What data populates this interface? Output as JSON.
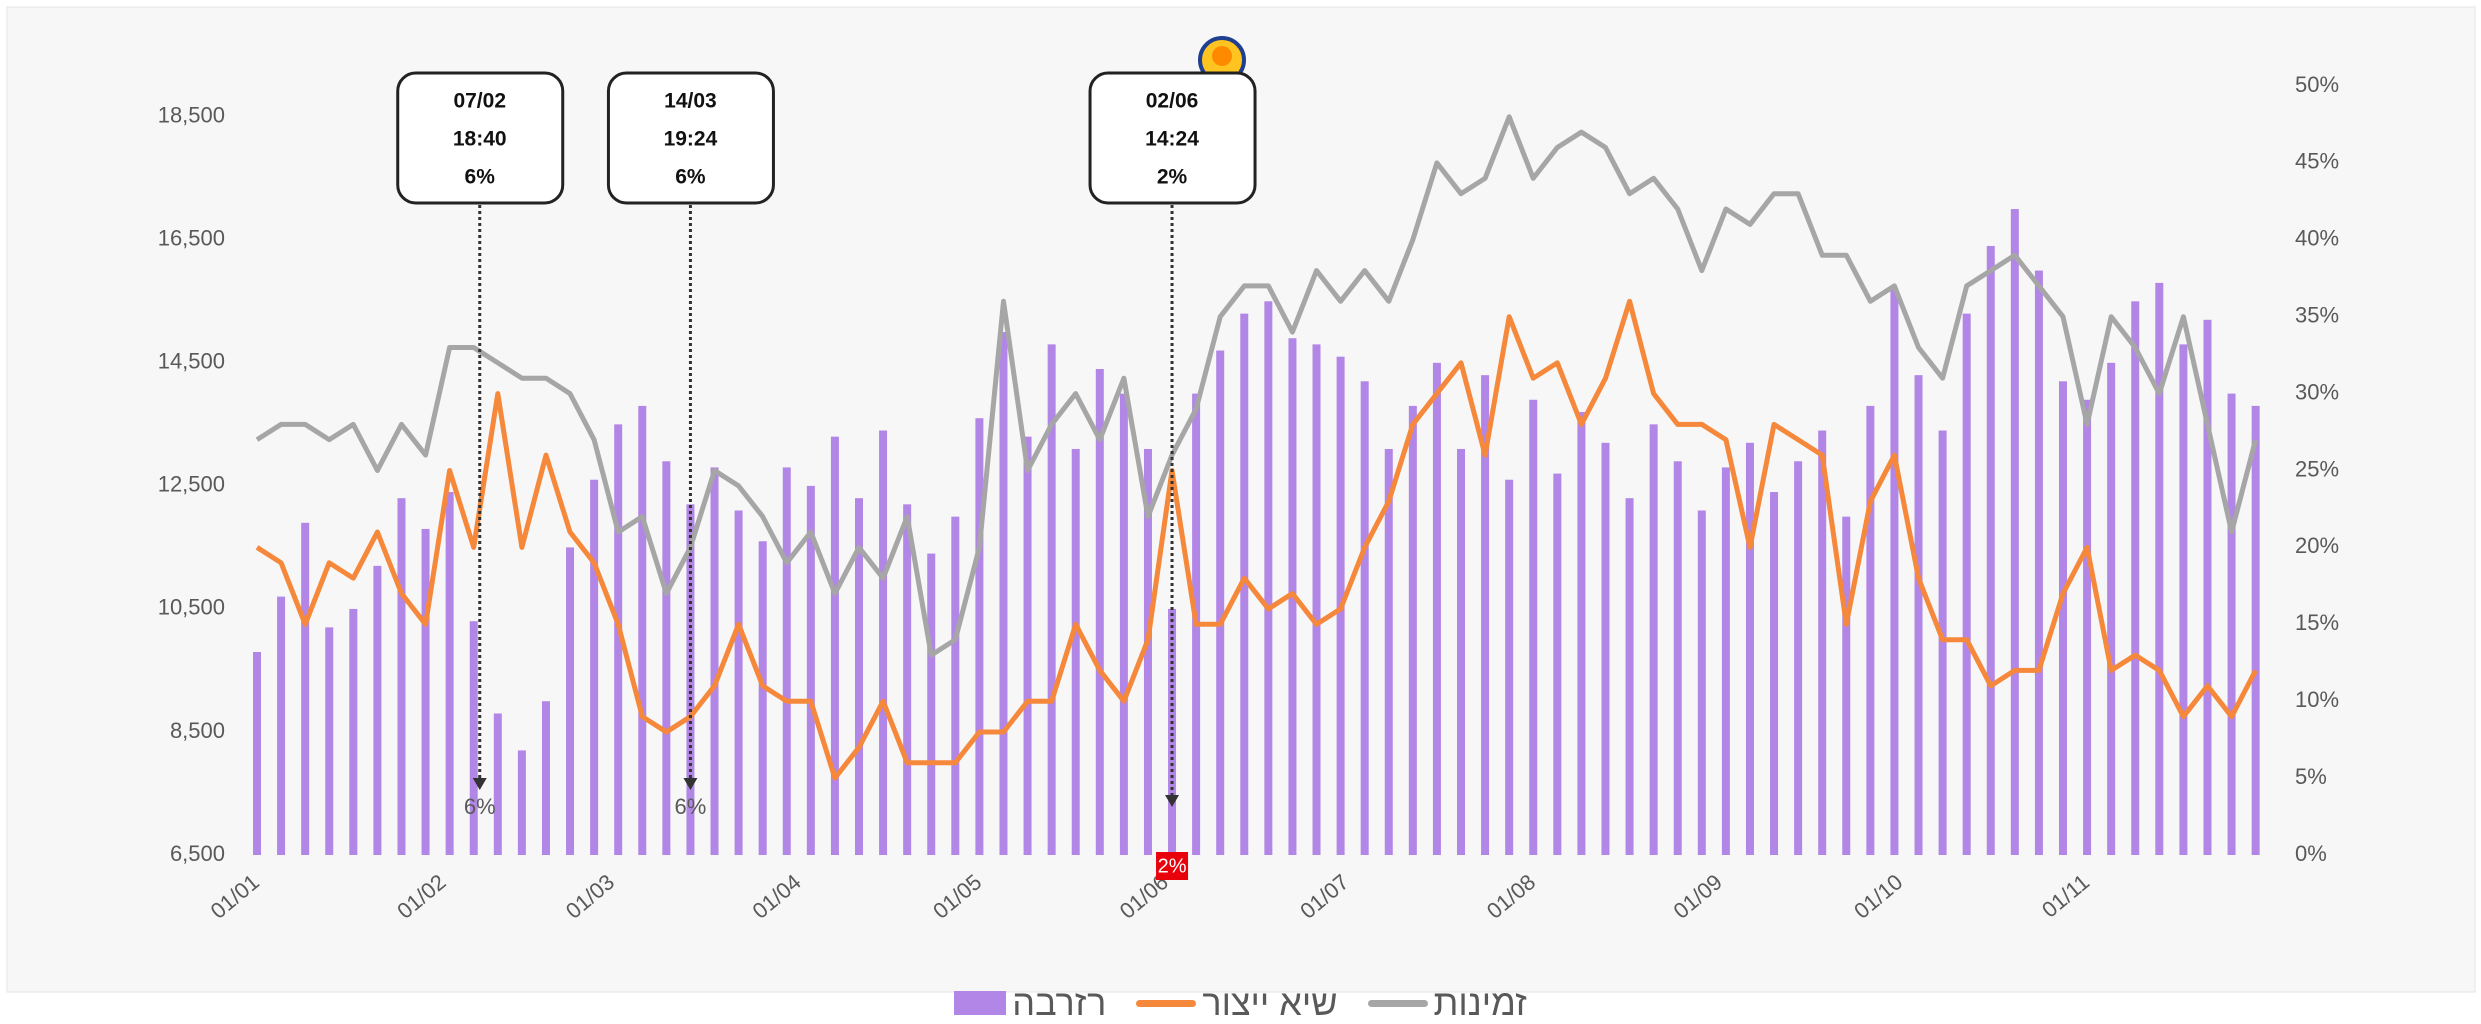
{
  "chart_data": {
    "type": "bar-line",
    "x": [
      "01/01",
      "05/01",
      "09/01",
      "13/01",
      "17/01",
      "21/01",
      "25/01",
      "29/01",
      "02/02",
      "06/02",
      "10/02",
      "14/02",
      "18/02",
      "22/02",
      "26/02",
      "02/03",
      "06/03",
      "10/03",
      "14/03",
      "18/03",
      "22/03",
      "26/03",
      "30/03",
      "03/04",
      "07/04",
      "11/04",
      "15/04",
      "19/04",
      "23/04",
      "27/04",
      "01/05",
      "05/05",
      "09/05",
      "13/05",
      "17/05",
      "21/05",
      "25/05",
      "29/05",
      "02/06",
      "06/06",
      "10/06",
      "14/06",
      "18/06",
      "22/06",
      "26/06",
      "30/06",
      "04/07",
      "08/07",
      "12/07",
      "16/07",
      "20/07",
      "24/07",
      "28/07",
      "01/08",
      "05/08",
      "09/08",
      "13/08",
      "17/08",
      "21/08",
      "25/08",
      "29/08",
      "02/09",
      "06/09",
      "10/09",
      "14/09",
      "18/09",
      "22/09",
      "26/09",
      "30/09",
      "04/10",
      "08/10",
      "12/10",
      "16/10",
      "20/10",
      "24/10",
      "28/10",
      "01/11",
      "05/11",
      "09/11",
      "13/11",
      "17/11",
      "21/11",
      "25/11",
      "29/11"
    ],
    "series": [
      {
        "name": "רזרבה",
        "kind": "bar",
        "color": "#b286e6",
        "axis": "y",
        "values": [
          9800,
          10700,
          11900,
          10200,
          10500,
          11200,
          12300,
          11800,
          12400,
          10300,
          8800,
          8200,
          9000,
          11500,
          12600,
          13500,
          13800,
          12900,
          12200,
          12800,
          12100,
          11600,
          12800,
          12500,
          13300,
          12300,
          13400,
          12200,
          11400,
          12000,
          13600,
          15000,
          13300,
          14800,
          13100,
          14400,
          14000,
          13100,
          10500,
          14000,
          14700,
          15300,
          15500,
          14900,
          14800,
          14600,
          14200,
          13100,
          13800,
          14500,
          13100,
          14300,
          12600,
          13900,
          12700,
          13700,
          13200,
          12300,
          13500,
          12900,
          12100,
          12800,
          13200,
          12400,
          12900,
          13400,
          12000,
          13800,
          15700,
          14300,
          13400,
          15300,
          16400,
          17000,
          16000,
          14200,
          13900,
          14500,
          15500,
          15800,
          14800,
          15200,
          14000,
          13800
        ]
      },
      {
        "name": "שיא ייצור",
        "kind": "line",
        "color": "#f5883a",
        "axis": "y2",
        "values": [
          20,
          19,
          15,
          19,
          18,
          21,
          17,
          15,
          25,
          20,
          30,
          20,
          26,
          21,
          19,
          15,
          9,
          8,
          9,
          11,
          15,
          11,
          10,
          10,
          5,
          7,
          10,
          6,
          6,
          6,
          8,
          8,
          10,
          10,
          15,
          12,
          10,
          14,
          25,
          15,
          15,
          18,
          16,
          17,
          15,
          16,
          20,
          23,
          28,
          30,
          32,
          26,
          35,
          31,
          32,
          28,
          31,
          36,
          30,
          28,
          28,
          27,
          20,
          28,
          27,
          26,
          15,
          23,
          26,
          18,
          14,
          14,
          11,
          12,
          12,
          17,
          20,
          12,
          13,
          12,
          9,
          11,
          9,
          12
        ]
      },
      {
        "name": "זמינות",
        "kind": "line",
        "color": "#a6a6a6",
        "axis": "y2",
        "values": [
          27,
          28,
          28,
          27,
          28,
          25,
          28,
          26,
          33,
          33,
          32,
          31,
          31,
          30,
          27,
          21,
          22,
          17,
          20,
          25,
          24,
          22,
          19,
          21,
          17,
          20,
          18,
          22,
          13,
          14,
          20,
          36,
          25,
          28,
          30,
          27,
          31,
          22,
          26,
          29,
          35,
          37,
          37,
          34,
          38,
          36,
          38,
          36,
          40,
          45,
          43,
          44,
          48,
          44,
          46,
          47,
          46,
          43,
          44,
          42,
          38,
          42,
          41,
          43,
          43,
          39,
          39,
          36,
          37,
          33,
          31,
          37,
          38,
          39,
          37,
          35,
          28,
          35,
          33,
          30,
          35,
          28,
          21,
          27
        ]
      }
    ],
    "ylim": [
      6500,
      19000
    ],
    "yticks": [
      {
        "value": 6500,
        "label": "6,500"
      },
      {
        "value": 8500,
        "label": "8,500"
      },
      {
        "value": 10500,
        "label": "10,500"
      },
      {
        "value": 12500,
        "label": "12,500"
      },
      {
        "value": 14500,
        "label": "14,500"
      },
      {
        "value": 16500,
        "label": "16,500"
      },
      {
        "value": 18500,
        "label": "18,500"
      }
    ],
    "y2lim": [
      0,
      50
    ],
    "y2ticks": [
      {
        "value": 0,
        "label": "0%"
      },
      {
        "value": 5,
        "label": "5%"
      },
      {
        "value": 10,
        "label": "10%"
      },
      {
        "value": 15,
        "label": "15%"
      },
      {
        "value": 20,
        "label": "20%"
      },
      {
        "value": 25,
        "label": "25%"
      },
      {
        "value": 30,
        "label": "30%"
      },
      {
        "value": 35,
        "label": "35%"
      },
      {
        "value": 40,
        "label": "40%"
      },
      {
        "value": 45,
        "label": "45%"
      },
      {
        "value": 50,
        "label": "50%"
      }
    ],
    "xticks": [
      "01/01",
      "01/02",
      "01/03",
      "01/04",
      "01/05",
      "01/06",
      "01/07",
      "01/08",
      "01/09",
      "01/10",
      "01/11"
    ],
    "annotations": [
      {
        "date": "07/02",
        "time": "18:40",
        "value": "6%",
        "marker_label": "6%"
      },
      {
        "date": "14/03",
        "time": "19:24",
        "value": "6%",
        "marker_label": "6%"
      },
      {
        "date": "02/06",
        "time": "14:24",
        "value": "2%",
        "marker_label": "2%",
        "marker_badge_color": "#e8000b"
      }
    ]
  }
}
